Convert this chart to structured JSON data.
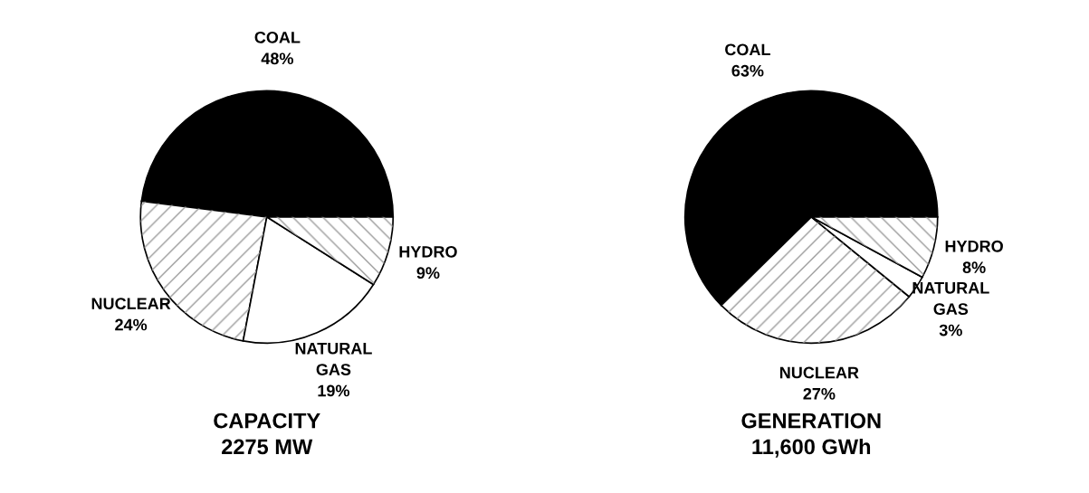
{
  "chart_data": [
    {
      "type": "pie",
      "title": "CAPACITY\n2275 MW",
      "categories": [
        "COAL",
        "NUCLEAR",
        "NATURAL GAS",
        "HYDRO"
      ],
      "values": [
        48,
        24,
        19,
        9
      ],
      "value_labels": [
        "48%",
        "24%",
        "19%",
        "9%"
      ],
      "colors": [
        "#000000",
        "#ffffff",
        "#ffffff",
        "#ffffff"
      ]
    },
    {
      "type": "pie",
      "title": "GENERATION\n11,600 GWh",
      "categories": [
        "COAL",
        "NUCLEAR",
        "NATURAL GAS",
        "HYDRO"
      ],
      "values": [
        63,
        27,
        3,
        8
      ],
      "value_labels": [
        "63%",
        "27%",
        "3%",
        "8%"
      ],
      "colors": [
        "#000000",
        "#ffffff",
        "#ffffff",
        "#ffffff"
      ]
    }
  ]
}
